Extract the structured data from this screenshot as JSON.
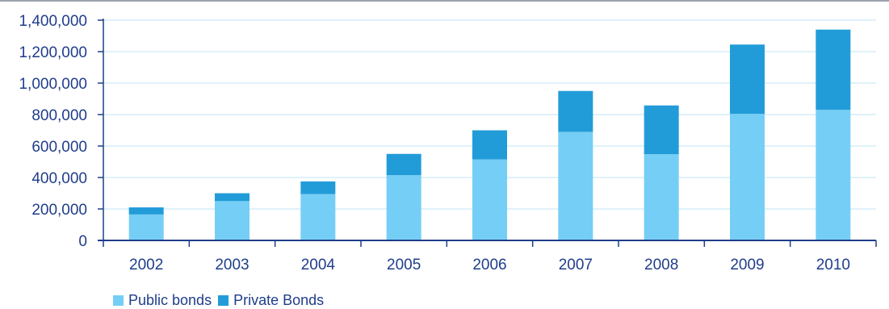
{
  "chart_data": {
    "type": "bar",
    "stacked": true,
    "categories": [
      "2002",
      "2003",
      "2004",
      "2005",
      "2006",
      "2007",
      "2008",
      "2009",
      "2010"
    ],
    "series": [
      {
        "name": "Public bonds",
        "color": "#75cef5",
        "values": [
          165000,
          250000,
          295000,
          415000,
          515000,
          690000,
          548000,
          805000,
          830000
        ]
      },
      {
        "name": "Private Bonds",
        "color": "#229cd8",
        "values": [
          45000,
          50000,
          80000,
          135000,
          185000,
          260000,
          310000,
          440000,
          510000
        ]
      }
    ],
    "ylim": [
      0,
      1400000
    ],
    "yticks": [
      0,
      200000,
      400000,
      600000,
      800000,
      1000000,
      1200000,
      1400000
    ],
    "ytick_labels": [
      "0",
      "200,000",
      "400,000",
      "600,000",
      "800,000",
      "1,000,000",
      "1,200,000",
      "1,400,000"
    ],
    "grid": true,
    "legend_position": "bottom-left",
    "axis_color": "#1f3d8a",
    "grid_color": "#bfe3f5"
  }
}
